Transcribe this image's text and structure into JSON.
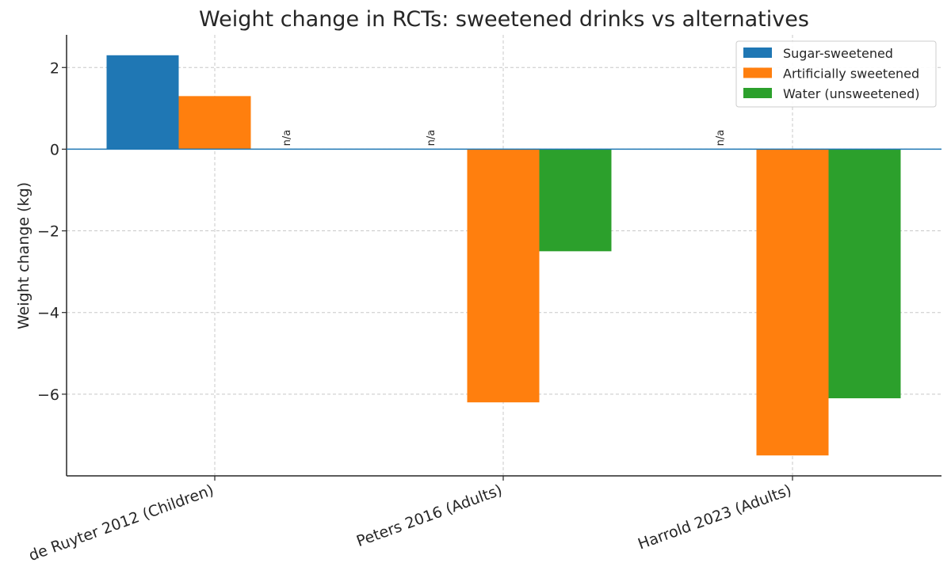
{
  "chart_data": {
    "type": "bar",
    "title": "Weight change in RCTs: sweetened drinks vs alternatives",
    "xlabel": "",
    "ylabel": "Weight change (kg)",
    "categories": [
      "de Ruyter 2012 (Children)",
      "Peters 2016 (Adults)",
      "Harrold 2023 (Adults)"
    ],
    "series": [
      {
        "name": "Sugar-sweetened",
        "color": "#1f77b4",
        "values": [
          2.3,
          null,
          null
        ]
      },
      {
        "name": "Artificially sweetened",
        "color": "#ff7f0e",
        "values": [
          1.3,
          -6.2,
          -7.5
        ]
      },
      {
        "name": "Water (unsweetened)",
        "color": "#2ca02c",
        "values": [
          null,
          -2.5,
          -6.1
        ]
      }
    ],
    "missing_label": "n/a",
    "ylim": [
      -8,
      2.8
    ],
    "yticks": [
      2,
      0,
      -2,
      -4,
      -6
    ],
    "grid": true,
    "legend": "top-right"
  }
}
